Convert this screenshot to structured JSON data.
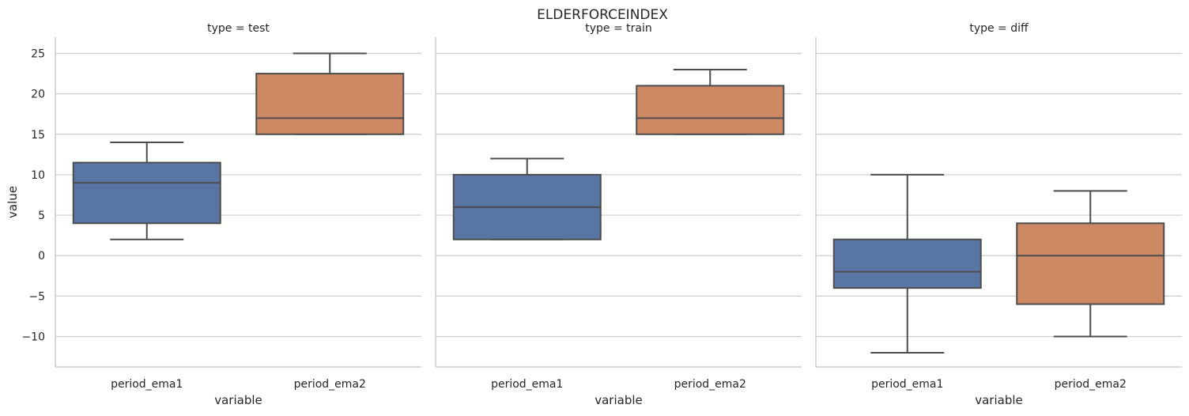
{
  "figure": {
    "suptitle": "ELDERFORCEINDEX"
  },
  "chart_data": {
    "type": "box",
    "title": "ELDERFORCEINDEX",
    "xlabel": "variable",
    "ylabel": "value",
    "ylim": [
      -14,
      27
    ],
    "yticks": [
      -10,
      -5,
      0,
      5,
      10,
      15,
      20,
      25
    ],
    "categories": [
      "period_ema1",
      "period_ema2"
    ],
    "grid": "horizontal",
    "colors": {
      "period_ema1": "#5975a4",
      "period_ema2": "#cc8963",
      "line": "#4d4d4d",
      "grid": "#cccccc",
      "spine": "#cccccc"
    },
    "panels": [
      {
        "title": "type = test",
        "boxes": [
          {
            "category": "period_ema1",
            "whisker_low": 2,
            "q1": 4,
            "median": 9,
            "q3": 11.5,
            "whisker_high": 14
          },
          {
            "category": "period_ema2",
            "whisker_low": 15,
            "q1": 15,
            "median": 17,
            "q3": 22.5,
            "whisker_high": 25
          }
        ]
      },
      {
        "title": "type = train",
        "boxes": [
          {
            "category": "period_ema1",
            "whisker_low": 2,
            "q1": 2,
            "median": 6,
            "q3": 10,
            "whisker_high": 12
          },
          {
            "category": "period_ema2",
            "whisker_low": 15,
            "q1": 15,
            "median": 17,
            "q3": 21,
            "whisker_high": 23
          }
        ]
      },
      {
        "title": "type = diff",
        "boxes": [
          {
            "category": "period_ema1",
            "whisker_low": -12,
            "q1": -4,
            "median": -2,
            "q3": 2,
            "whisker_high": 10
          },
          {
            "category": "period_ema2",
            "whisker_low": -10,
            "q1": -6,
            "median": 0,
            "q3": 4,
            "whisker_high": 8
          }
        ]
      }
    ]
  }
}
